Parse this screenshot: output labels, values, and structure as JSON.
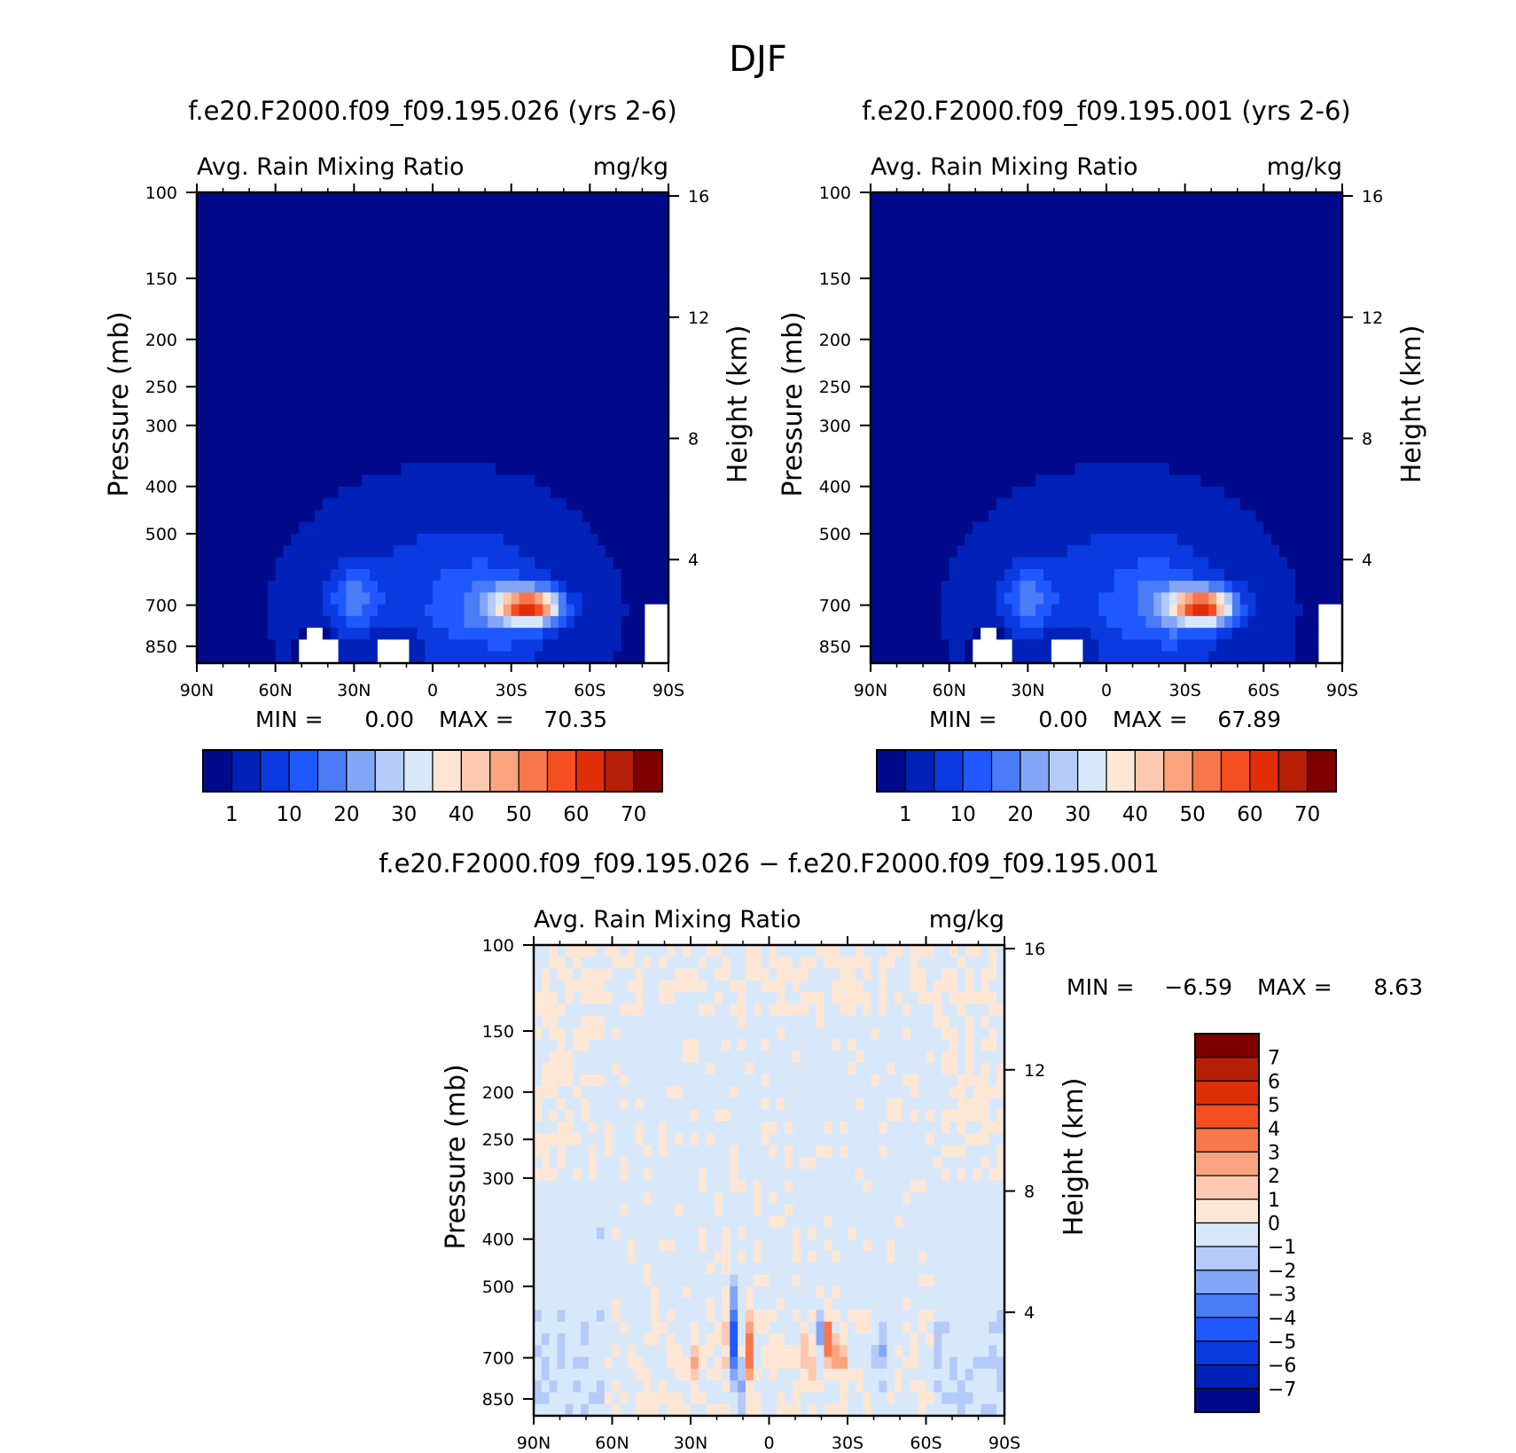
{
  "figure_title": "DJF",
  "chart_data": [
    {
      "type": "heatmap",
      "title": "f.e20.F2000.f09_f09.195.026 (yrs 2-6)",
      "subtitle_left": "Avg. Rain Mixing Ratio",
      "subtitle_right": "mg/kg",
      "ylabel": "Pressure (mb)",
      "ylabel_right": "Height (km)",
      "x_ticks": [
        "90N",
        "60N",
        "30N",
        "0",
        "30S",
        "60S",
        "90S"
      ],
      "y_ticks": [
        "100",
        "150",
        "200",
        "250",
        "300",
        "400",
        "500",
        "700",
        "850"
      ],
      "y_ticks_right": [
        "16",
        "12",
        "8",
        "4"
      ],
      "min_label": "MIN =",
      "min_value": "0.00",
      "max_label": "MAX =",
      "max_value": "70.35",
      "colorbar_orientation": "horizontal",
      "colorbar_labels": [
        "1",
        "10",
        "20",
        "30",
        "40",
        "50",
        "60",
        "70"
      ],
      "peak_lat": -37,
      "peak_pressure": 700,
      "peak_value": 70.35
    },
    {
      "type": "heatmap",
      "title": "f.e20.F2000.f09_f09.195.001 (yrs 2-6)",
      "subtitle_left": "Avg. Rain Mixing Ratio",
      "subtitle_right": "mg/kg",
      "ylabel": "Pressure (mb)",
      "ylabel_right": "Height (km)",
      "x_ticks": [
        "90N",
        "60N",
        "30N",
        "0",
        "30S",
        "60S",
        "90S"
      ],
      "y_ticks": [
        "100",
        "150",
        "200",
        "250",
        "300",
        "400",
        "500",
        "700",
        "850"
      ],
      "y_ticks_right": [
        "16",
        "12",
        "8",
        "4"
      ],
      "min_label": "MIN =",
      "min_value": "0.00",
      "max_label": "MAX =",
      "max_value": "67.89",
      "colorbar_orientation": "horizontal",
      "colorbar_labels": [
        "1",
        "10",
        "20",
        "30",
        "40",
        "50",
        "60",
        "70"
      ],
      "peak_lat": -37,
      "peak_pressure": 700,
      "peak_value": 67.89
    },
    {
      "type": "heatmap",
      "title": "f.e20.F2000.f09_f09.195.026 − f.e20.F2000.f09_f09.195.001",
      "subtitle_left": "Avg. Rain Mixing Ratio",
      "subtitle_right": "mg/kg",
      "ylabel": "Pressure (mb)",
      "ylabel_right": "Height (km)",
      "x_ticks": [
        "90N",
        "60N",
        "30N",
        "0",
        "30S",
        "60S",
        "90S"
      ],
      "y_ticks": [
        "100",
        "150",
        "200",
        "250",
        "300",
        "400",
        "500",
        "700",
        "850"
      ],
      "y_ticks_right": [
        "16",
        "12",
        "8",
        "4"
      ],
      "min_label": "MIN =",
      "min_value": "−6.59",
      "max_label": "MAX =",
      "max_value": "8.63",
      "colorbar_orientation": "vertical",
      "colorbar_labels": [
        "7",
        "6",
        "5",
        "4",
        "3",
        "2",
        "1",
        "0",
        "−1",
        "−2",
        "−3",
        "−4",
        "−5",
        "−6",
        "−7"
      ]
    }
  ],
  "colors": {
    "abs_levels": [
      "#000a8a",
      "#0022b8",
      "#0a3ae0",
      "#2058ff",
      "#4a7cf7",
      "#84a6f6",
      "#b4caf8",
      "#d8e8fb",
      "#fde6d4",
      "#fcc8b0",
      "#f9a47e",
      "#f8774a",
      "#f44e22",
      "#df2e08",
      "#b51f05",
      "#7e0000"
    ],
    "diff_levels": [
      "#7e0000",
      "#b51f05",
      "#df2e08",
      "#f44e22",
      "#f8774a",
      "#f9a47e",
      "#fcc8b0",
      "#fde6d4",
      "#d8e8fb",
      "#b4caf8",
      "#84a6f6",
      "#4a7cf7",
      "#2058ff",
      "#0a3ae0",
      "#0022b8",
      "#000a8a"
    ]
  }
}
